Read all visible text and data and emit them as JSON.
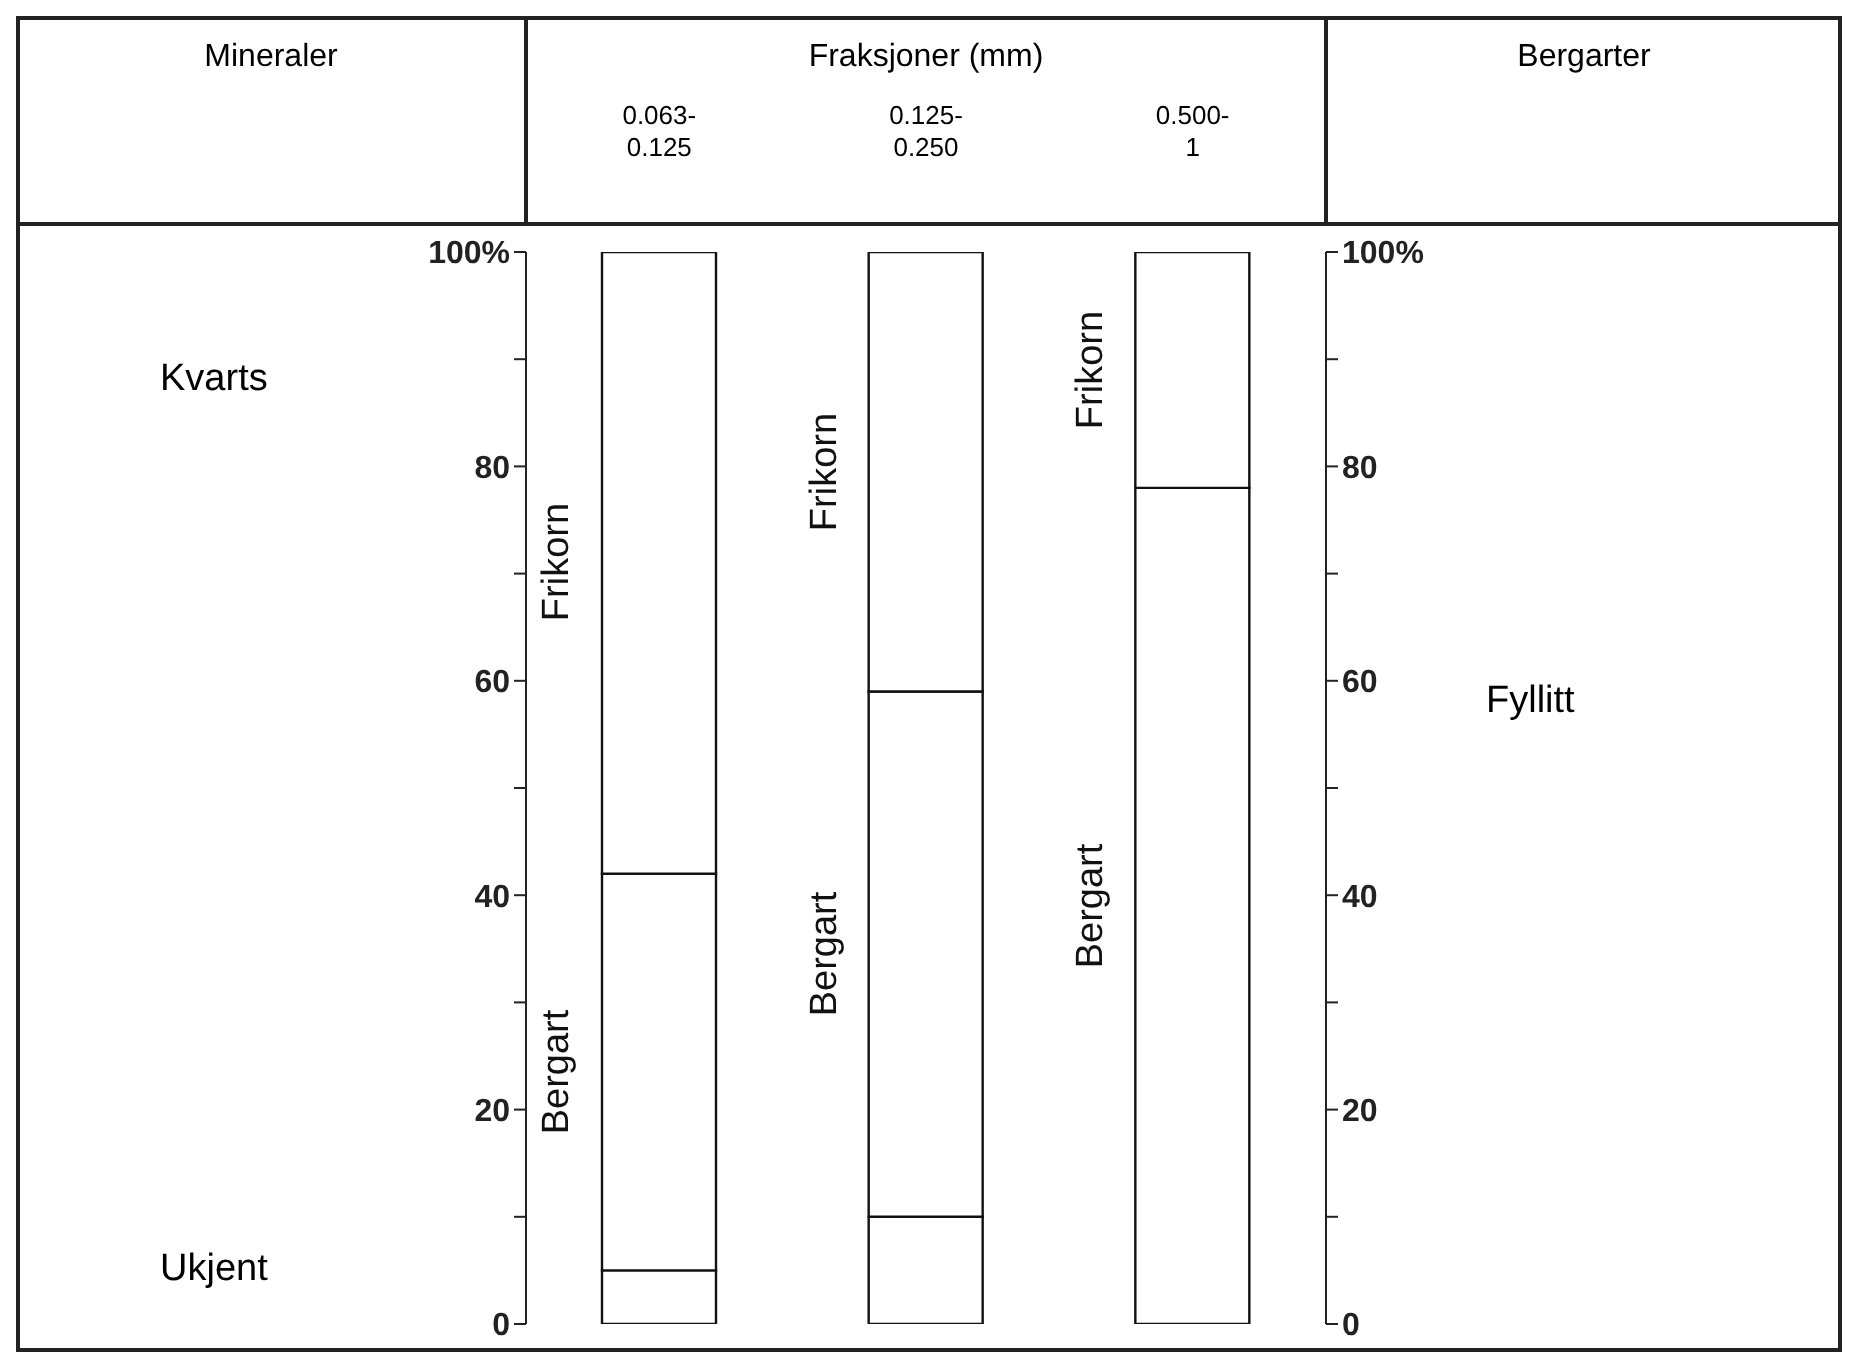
{
  "chart_data": {
    "type": "bar",
    "title": "Fraksjoner (mm)",
    "ylabel": "Mineraler",
    "y2label": "Bergarter",
    "categories": [
      "0.063-0.125",
      "0.125-0.250",
      "0.500-1"
    ],
    "stacked": true,
    "series": [
      {
        "color": "#ffffff",
        "values": [
          5,
          10,
          0
        ]
      },
      {
        "name": "Bergart",
        "color": "#ffffff",
        "values": [
          37,
          49,
          78
        ]
      },
      {
        "name": "Frikorn",
        "color": "#ffffff",
        "values": [
          58,
          41,
          22
        ]
      }
    ],
    "ylim": [
      0,
      100
    ],
    "yticks": [
      0,
      {
        "value": 10,
        "label": null
      },
      20,
      {
        "value": 30,
        "label": null
      },
      40,
      {
        "value": 50,
        "label": null
      },
      60,
      {
        "value": 70,
        "label": null
      },
      80,
      {
        "value": 90,
        "label": null
      },
      {
        "value": 100,
        "label": "100%"
      }
    ],
    "y2lim": [
      0,
      100
    ],
    "y2ticks": [
      0,
      {
        "value": 10,
        "label": null
      },
      20,
      {
        "value": 30,
        "label": null
      },
      40,
      {
        "value": 50,
        "label": null
      },
      60,
      {
        "value": 70,
        "label": null
      },
      80,
      {
        "value": 90,
        "label": null
      },
      {
        "value": 100,
        "label": "100%"
      }
    ],
    "annotations": [
      "Kvarts",
      "Ukjent",
      "Fyllitt"
    ]
  }
}
